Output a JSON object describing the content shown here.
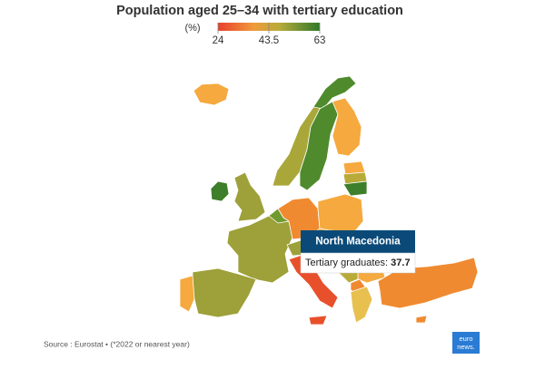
{
  "header": {
    "title": "Population aged 25–34 with tertiary education"
  },
  "legend": {
    "unit": "(%)",
    "ticks": [
      24,
      43.5,
      63
    ]
  },
  "tooltip": {
    "country": "North Macedonia",
    "label": "Tertiary graduates:",
    "value": 37.7
  },
  "footer": {
    "source": "Source : Eurostat • (*2022 or nearest year)",
    "logo_top": "euro",
    "logo_bottom": "news."
  }
}
